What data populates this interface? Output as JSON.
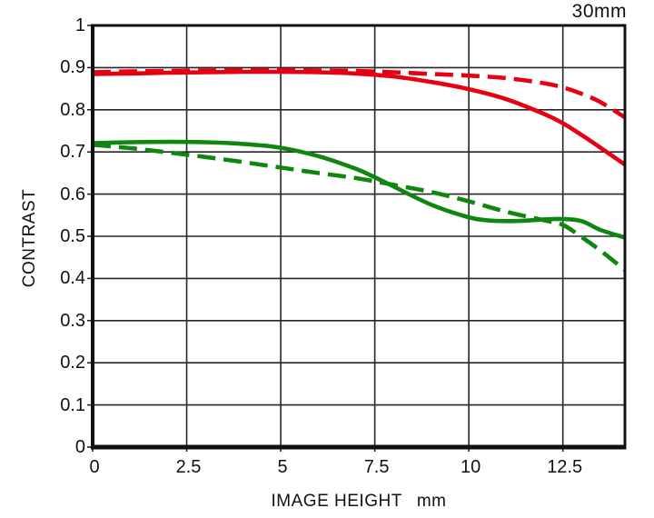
{
  "colors": {
    "red_line": "#e60012",
    "green_line": "#0f870f",
    "grid": "#262626",
    "border": "#111111",
    "text": "#111111",
    "background": "#ffffff"
  },
  "chart_data": {
    "type": "line",
    "title": "30mm",
    "ylabel": "CONTRAST",
    "xlabel": "IMAGE HEIGHT",
    "x_unit": "mm",
    "xlim": [
      0,
      14.15
    ],
    "ylim": [
      0,
      1
    ],
    "xticks": [
      0,
      2.5,
      5,
      7.5,
      10,
      12.5
    ],
    "xtick_labels": [
      "0",
      "2.5",
      "5",
      "7.5",
      "10",
      "12.5"
    ],
    "yticks": [
      0,
      0.1,
      0.2,
      0.3,
      0.4,
      0.5,
      0.6,
      0.7,
      0.8,
      0.9,
      1
    ],
    "ytick_labels": [
      "0",
      "0.1",
      "0.2",
      "0.3",
      "0.4",
      "0.5",
      "0.6",
      "0.7",
      "0.8",
      "0.9",
      "1"
    ],
    "grid": true,
    "legend_position": "none",
    "series": [
      {
        "name": "red-solid",
        "color": "#e60012",
        "style": "solid",
        "x": [
          0,
          1,
          2,
          3,
          4,
          5,
          6,
          7,
          8,
          9,
          10,
          11,
          12,
          12.5,
          13,
          13.5,
          14.15
        ],
        "y": [
          0.885,
          0.886,
          0.888,
          0.889,
          0.89,
          0.89,
          0.889,
          0.886,
          0.879,
          0.866,
          0.849,
          0.825,
          0.79,
          0.768,
          0.74,
          0.71,
          0.67
        ]
      },
      {
        "name": "red-dashed",
        "color": "#e60012",
        "style": "dashed",
        "x": [
          0,
          1,
          2,
          3,
          4,
          5,
          6,
          7,
          8,
          9,
          10,
          11,
          12,
          12.5,
          13,
          13.5,
          14.15
        ],
        "y": [
          0.889,
          0.891,
          0.892,
          0.893,
          0.894,
          0.894,
          0.893,
          0.892,
          0.889,
          0.885,
          0.881,
          0.875,
          0.863,
          0.853,
          0.838,
          0.818,
          0.782
        ]
      },
      {
        "name": "green-dashed",
        "color": "#0f870f",
        "style": "dashed",
        "x": [
          0,
          1,
          2,
          3,
          4,
          5,
          6,
          7,
          8,
          9,
          10,
          11,
          12,
          12.5,
          13,
          13.5,
          14.15
        ],
        "y": [
          0.717,
          0.709,
          0.699,
          0.688,
          0.676,
          0.663,
          0.65,
          0.638,
          0.622,
          0.605,
          0.583,
          0.558,
          0.538,
          0.527,
          0.498,
          0.466,
          0.42
        ]
      },
      {
        "name": "green-solid",
        "color": "#0f870f",
        "style": "solid",
        "x": [
          0,
          1,
          2,
          3,
          4,
          5,
          6,
          7,
          7.5,
          8,
          9,
          10,
          10.5,
          11,
          11.5,
          12,
          12.5,
          13,
          13.5,
          14.15
        ],
        "y": [
          0.721,
          0.723,
          0.724,
          0.723,
          0.719,
          0.71,
          0.69,
          0.66,
          0.64,
          0.618,
          0.575,
          0.545,
          0.538,
          0.536,
          0.537,
          0.54,
          0.541,
          0.536,
          0.515,
          0.497
        ]
      }
    ]
  }
}
